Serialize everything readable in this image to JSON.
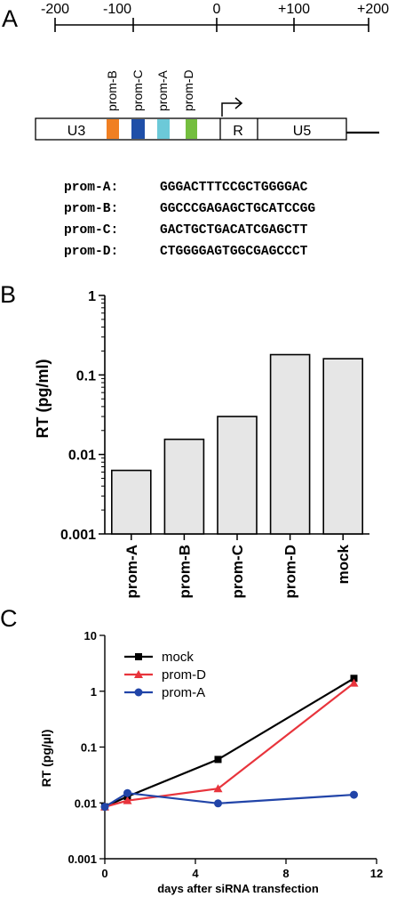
{
  "panel_a": {
    "letter": "A",
    "scale_ticks": [
      "-200",
      "-100",
      "0",
      "+100",
      "+200"
    ],
    "promoters": [
      {
        "label": "prom-B",
        "color": "#f07f22"
      },
      {
        "label": "prom-C",
        "color": "#1f4fa8"
      },
      {
        "label": "prom-A",
        "color": "#6cc9d8"
      },
      {
        "label": "prom-D",
        "color": "#74be3f"
      }
    ],
    "ltr_segments": {
      "u3": "U3",
      "r": "R",
      "u5": "U5"
    },
    "sequences": [
      {
        "name": "prom-A:",
        "seq": "GGGACTTTCCGCTGGGGAC"
      },
      {
        "name": "prom-B:",
        "seq": "GGCCCGAGAGCTGCATCCGG"
      },
      {
        "name": "prom-C:",
        "seq": "GACTGCTGACATCGAGCTT"
      },
      {
        "name": "prom-D:",
        "seq": "CTGGGGAGTGGCGAGCCCT"
      }
    ]
  },
  "panel_b": {
    "letter": "B"
  },
  "panel_c": {
    "letter": "C"
  },
  "chart_data": [
    {
      "type": "bar",
      "scale": "log",
      "ylabel": "RT (pg/ml)",
      "ylim": [
        0.001,
        1
      ],
      "yticks": [
        "0.001",
        "0.01",
        "0.1",
        "1"
      ],
      "categories": [
        "prom-A",
        "prom-B",
        "prom-C",
        "prom-D",
        "mock"
      ],
      "values": [
        0.0063,
        0.0155,
        0.03,
        0.18,
        0.16
      ],
      "bar_color": "#e6e6e6"
    },
    {
      "type": "line",
      "scale": "log",
      "xlabel": "days after siRNA transfection",
      "ylabel": "RT (pg/µl)",
      "xlim": [
        0,
        12
      ],
      "ylim": [
        0.001,
        10
      ],
      "xticks": [
        "0",
        "4",
        "8",
        "12"
      ],
      "yticks": [
        "0.001",
        "0.01",
        "0.1",
        "1",
        "10"
      ],
      "legend_position": "top-left",
      "series": [
        {
          "name": "mock",
          "color": "#000000",
          "marker": "square",
          "x": [
            0,
            1,
            5,
            11
          ],
          "y": [
            0.0085,
            0.013,
            0.06,
            1.7
          ]
        },
        {
          "name": "prom-D",
          "color": "#e8343c",
          "marker": "triangle",
          "x": [
            0,
            1,
            5,
            11
          ],
          "y": [
            0.0085,
            0.011,
            0.018,
            1.4
          ]
        },
        {
          "name": "prom-A",
          "color": "#2144a8",
          "marker": "circle",
          "x": [
            0,
            1,
            5,
            11
          ],
          "y": [
            0.0085,
            0.015,
            0.0098,
            0.014
          ]
        }
      ]
    }
  ]
}
